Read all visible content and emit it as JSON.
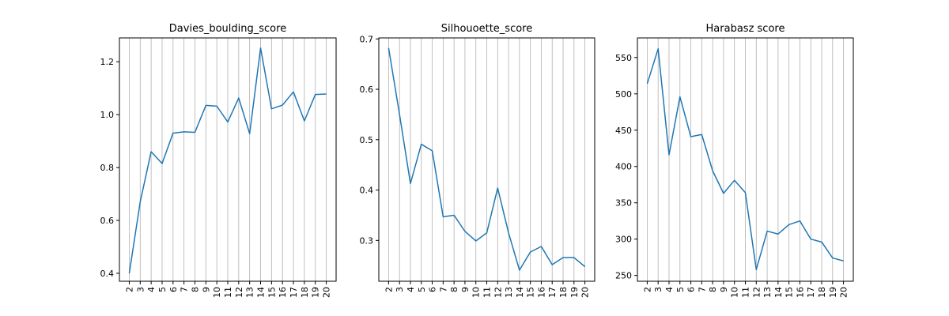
{
  "chart_data": [
    {
      "type": "line",
      "title": "Davies_boulding_score",
      "xlabel": "",
      "ylabel": "",
      "x": [
        2,
        3,
        4,
        5,
        6,
        7,
        8,
        9,
        10,
        11,
        12,
        13,
        14,
        15,
        16,
        17,
        18,
        19,
        20
      ],
      "series": [
        {
          "values": [
            0.4,
            0.67,
            0.86,
            0.815,
            0.93,
            0.935,
            0.933,
            1.035,
            1.032,
            0.972,
            1.063,
            0.928,
            1.252,
            1.022,
            1.036,
            1.086,
            0.976,
            1.076,
            1.078
          ]
        }
      ],
      "ylim": [
        0.37,
        1.29
      ],
      "yticks": [
        0.4,
        0.6,
        0.8,
        1.0,
        1.2
      ],
      "ytick_labels": [
        "0.4",
        "0.6",
        "0.8",
        "1.0",
        "1.2"
      ],
      "grid": "x",
      "color": "#1f77b4"
    },
    {
      "type": "line",
      "title": "Silhouoette_score",
      "xlabel": "",
      "ylabel": "",
      "x": [
        2,
        3,
        4,
        5,
        6,
        7,
        8,
        9,
        10,
        11,
        12,
        13,
        14,
        15,
        16,
        17,
        18,
        19,
        20
      ],
      "series": [
        {
          "values": [
            0.682,
            0.55,
            0.413,
            0.491,
            0.478,
            0.347,
            0.35,
            0.318,
            0.299,
            0.315,
            0.404,
            0.315,
            0.241,
            0.277,
            0.288,
            0.252,
            0.266,
            0.266,
            0.248
          ]
        }
      ],
      "ylim": [
        0.219,
        0.702
      ],
      "yticks": [
        0.3,
        0.4,
        0.5,
        0.6,
        0.7
      ],
      "ytick_labels": [
        "0.3",
        "0.4",
        "0.5",
        "0.6",
        "0.7"
      ],
      "grid": "x",
      "color": "#1f77b4"
    },
    {
      "type": "line",
      "title": "Harabasz score",
      "xlabel": "",
      "ylabel": "",
      "x": [
        2,
        3,
        4,
        5,
        6,
        7,
        8,
        9,
        10,
        11,
        12,
        13,
        14,
        15,
        16,
        17,
        18,
        19,
        20
      ],
      "series": [
        {
          "values": [
            514,
            562,
            416,
            496,
            441,
            444,
            394,
            363,
            381,
            364,
            258,
            311,
            307,
            320,
            325,
            300,
            296,
            274,
            270
          ]
        }
      ],
      "ylim": [
        242,
        577
      ],
      "yticks": [
        250,
        300,
        350,
        400,
        450,
        500,
        550
      ],
      "ytick_labels": [
        "250",
        "300",
        "350",
        "400",
        "450",
        "500",
        "550"
      ],
      "grid": "x",
      "color": "#1f77b4"
    }
  ]
}
